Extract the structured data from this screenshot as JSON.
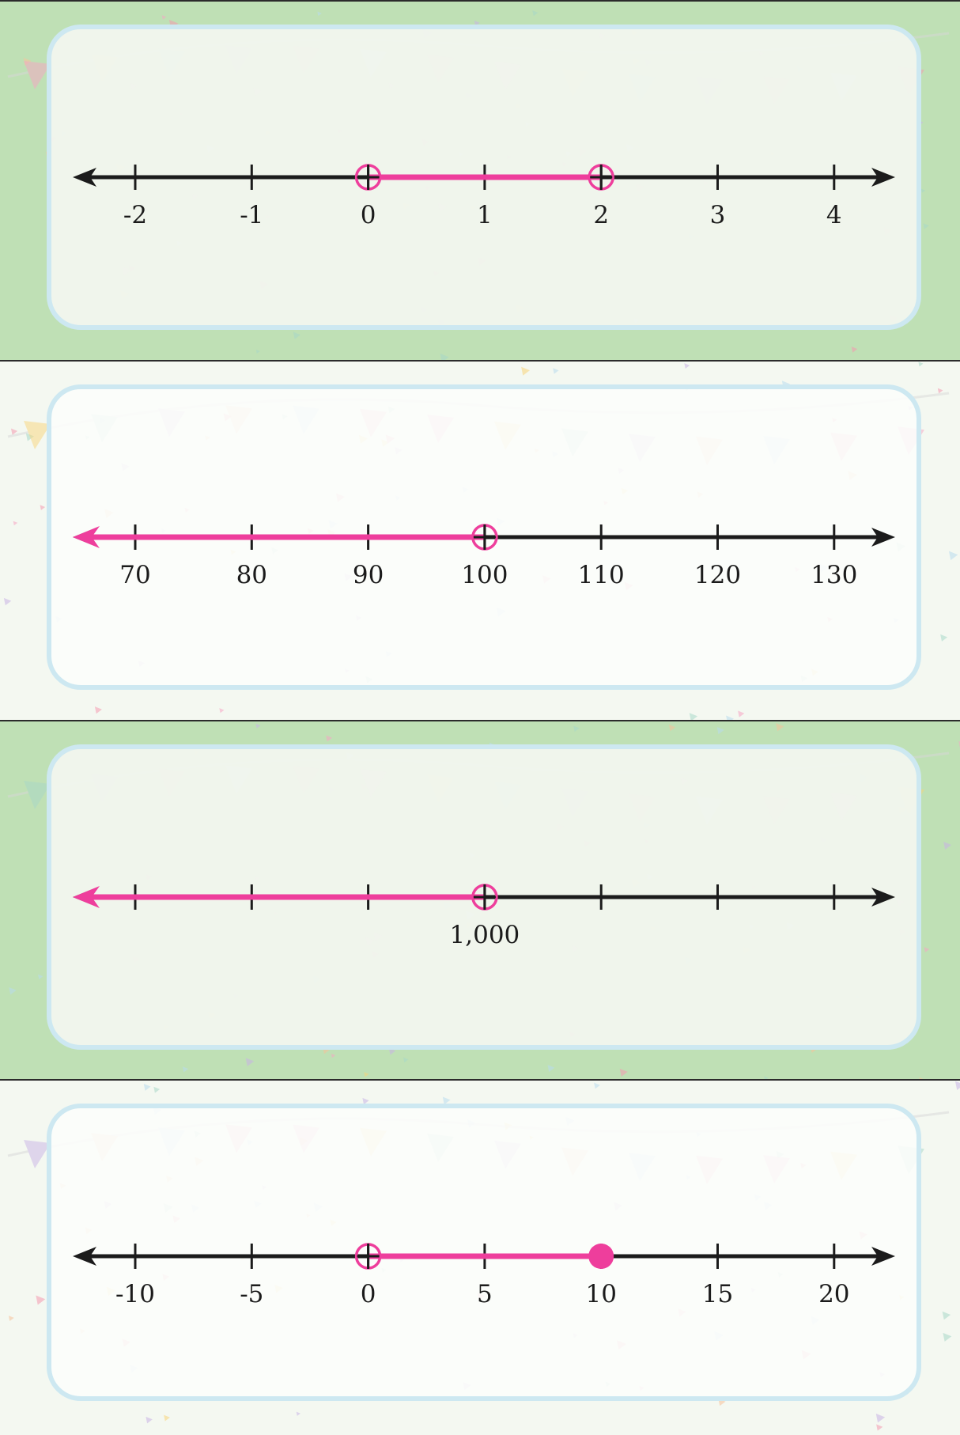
{
  "colors": {
    "highlight": "#ee3e9c",
    "axis": "#1b1b1b",
    "green_background": "#bfe0b5",
    "light_background": "#f4f8f1",
    "inner_panel": "#f2f7ef",
    "inner_panel_border": "#cde8f1"
  },
  "cards": [
    {
      "theme": "green",
      "ticks": [
        -2,
        -1,
        0,
        1,
        2,
        3,
        4
      ],
      "tick_labels": [
        "-2",
        "-1",
        "0",
        "1",
        "2",
        "3",
        "4"
      ],
      "open_points": [
        0,
        2
      ],
      "closed_points": [],
      "segments": [
        [
          0,
          2
        ]
      ],
      "ray": null
    },
    {
      "theme": "light",
      "ticks": [
        70,
        80,
        90,
        100,
        110,
        120,
        130
      ],
      "tick_labels": [
        "70",
        "80",
        "90",
        "100",
        "110",
        "120",
        "130"
      ],
      "open_points": [
        100
      ],
      "closed_points": [],
      "segments": [],
      "ray": {
        "from": 100,
        "direction": "left"
      }
    },
    {
      "theme": "green",
      "ticks": [
        1,
        2,
        3,
        4,
        5,
        6,
        7
      ],
      "tick_labels": [
        "",
        "",
        "",
        "1,000",
        "",
        "",
        ""
      ],
      "open_points": [
        4
      ],
      "closed_points": [],
      "segments": [],
      "ray": {
        "from": 4,
        "direction": "left"
      }
    },
    {
      "theme": "light",
      "ticks": [
        -10,
        -5,
        0,
        5,
        10,
        15,
        20
      ],
      "tick_labels": [
        "-10",
        "-5",
        "0",
        "5",
        "10",
        "15",
        "20"
      ],
      "open_points": [
        0
      ],
      "closed_points": [
        10
      ],
      "segments": [
        [
          0,
          10
        ]
      ],
      "ray": null
    }
  ]
}
